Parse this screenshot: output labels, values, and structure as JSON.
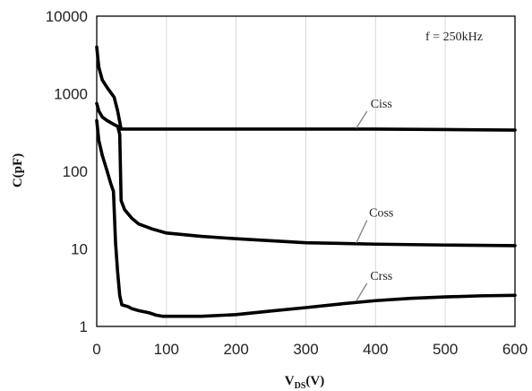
{
  "chart_data": {
    "type": "line",
    "xlabel_main": "V",
    "xlabel_sub": "DS",
    "xlabel_unit": "(V)",
    "ylabel": "C(pF)",
    "annotation": "f = 250kHz",
    "xlim": [
      0,
      600
    ],
    "ylim": [
      1,
      10000
    ],
    "yscale": "log",
    "grid": "vertical",
    "x_ticks": [
      "0",
      "100",
      "200",
      "300",
      "400",
      "500",
      "600"
    ],
    "y_ticks": [
      "1",
      "10",
      "100",
      "1000",
      "10000"
    ],
    "series": [
      {
        "name": "Ciss",
        "label_at": [
          380,
          660
        ],
        "x": [
          0,
          3,
          8,
          15,
          25,
          30,
          35,
          45,
          60,
          100,
          200,
          300,
          400,
          500,
          600
        ],
        "y": [
          4000,
          2200,
          1500,
          1200,
          900,
          600,
          350,
          350,
          350,
          350,
          350,
          350,
          350,
          345,
          340
        ]
      },
      {
        "name": "Coss",
        "label_at": [
          380,
          26
        ],
        "x": [
          0,
          3,
          8,
          15,
          25,
          30,
          33,
          35,
          40,
          50,
          60,
          80,
          100,
          150,
          200,
          300,
          400,
          500,
          600
        ],
        "y": [
          750,
          600,
          500,
          450,
          400,
          380,
          300,
          42,
          32,
          25,
          21,
          18,
          16,
          14.5,
          13.5,
          12,
          11.5,
          11.2,
          11
        ]
      },
      {
        "name": "Crss",
        "label_at": [
          380,
          4.0
        ],
        "x": [
          0,
          3,
          8,
          15,
          20,
          24,
          27,
          30,
          33,
          36,
          45,
          50,
          60,
          75,
          85,
          95,
          120,
          150,
          200,
          250,
          300,
          350,
          400,
          450,
          500,
          550,
          600
        ],
        "y": [
          450,
          250,
          160,
          100,
          70,
          55,
          12,
          5,
          2.5,
          1.9,
          1.8,
          1.7,
          1.6,
          1.5,
          1.4,
          1.35,
          1.35,
          1.35,
          1.42,
          1.58,
          1.75,
          1.95,
          2.15,
          2.3,
          2.4,
          2.48,
          2.52
        ]
      }
    ]
  }
}
